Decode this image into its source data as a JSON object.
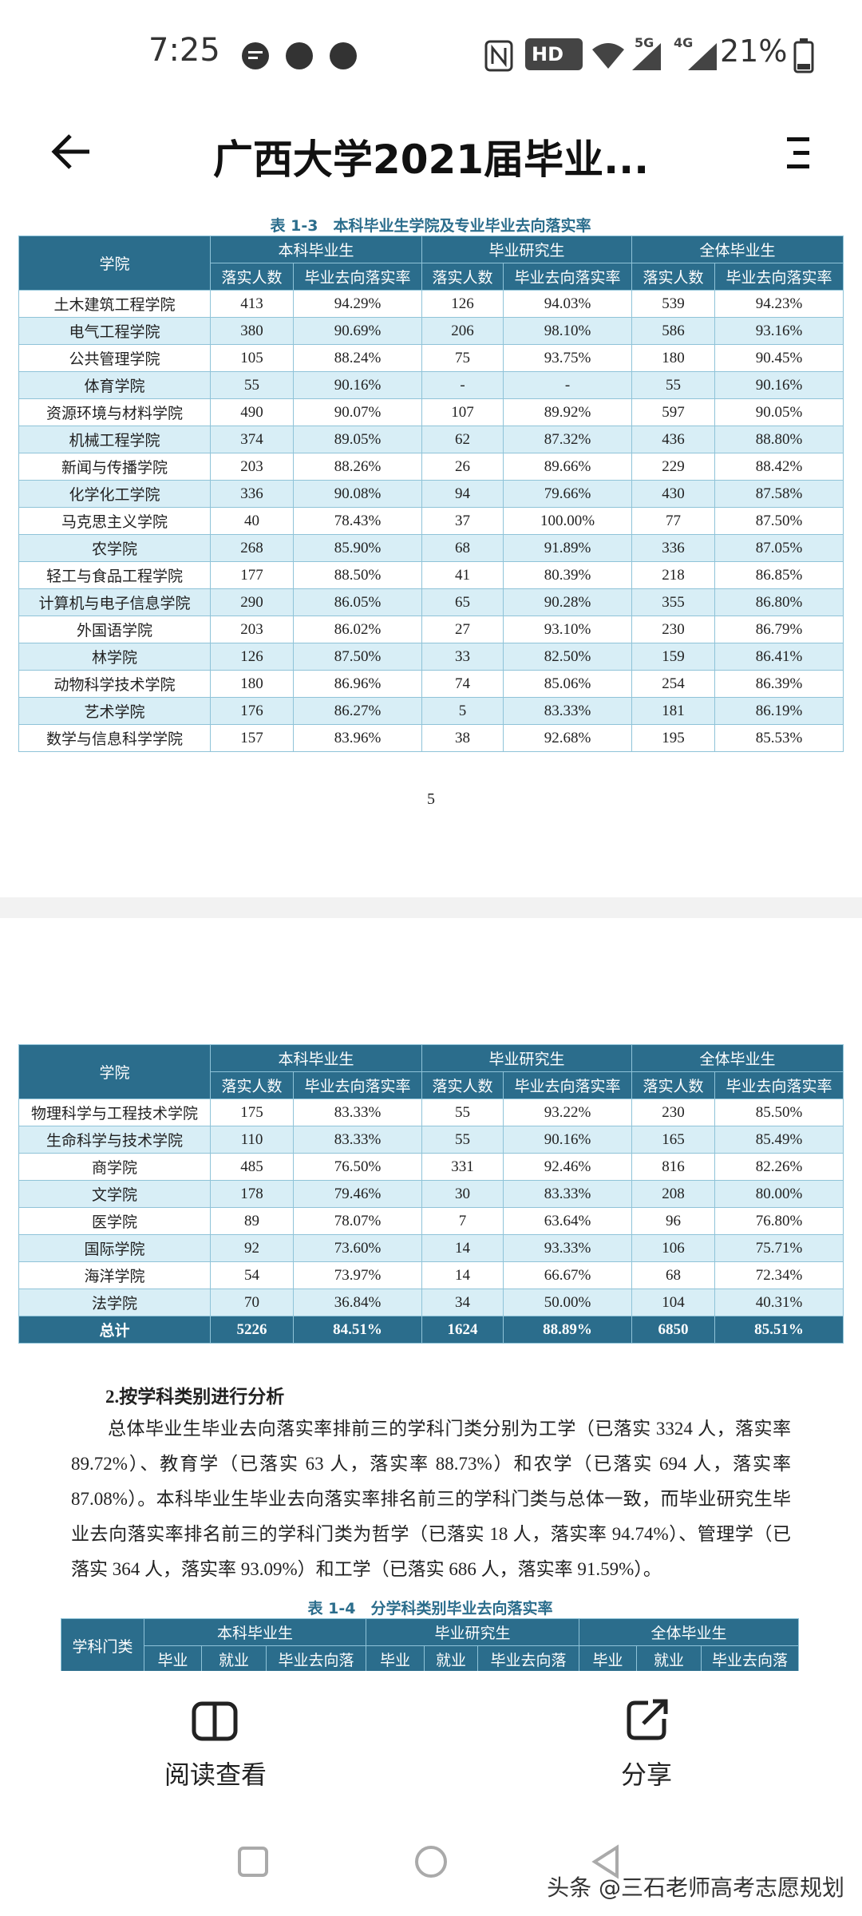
{
  "status_bar": {
    "time": "7:25",
    "hd": "HD",
    "net1": "5G",
    "net2": "4G",
    "battery": "21%"
  },
  "header": {
    "title": "广西大学2021届毕业..."
  },
  "table1": {
    "caption": "表 1-3　本科毕业生学院及专业毕业去向落实率",
    "header": [
      "学院"
    ],
    "groups": [
      "本科毕业生",
      "毕业研究生",
      "全体毕业生"
    ],
    "subheaders": [
      "落实人数",
      "毕业去向落实率",
      "落实人数",
      "毕业去向落实率",
      "落实人数",
      "毕业去向落实率"
    ],
    "rows": [
      [
        "土木建筑工程学院",
        "413",
        "94.29%",
        "126",
        "94.03%",
        "539",
        "94.23%"
      ],
      [
        "电气工程学院",
        "380",
        "90.69%",
        "206",
        "98.10%",
        "586",
        "93.16%"
      ],
      [
        "公共管理学院",
        "105",
        "88.24%",
        "75",
        "93.75%",
        "180",
        "90.45%"
      ],
      [
        "体育学院",
        "55",
        "90.16%",
        "-",
        "-",
        "55",
        "90.16%"
      ],
      [
        "资源环境与材料学院",
        "490",
        "90.07%",
        "107",
        "89.92%",
        "597",
        "90.05%"
      ],
      [
        "机械工程学院",
        "374",
        "89.05%",
        "62",
        "87.32%",
        "436",
        "88.80%"
      ],
      [
        "新闻与传播学院",
        "203",
        "88.26%",
        "26",
        "89.66%",
        "229",
        "88.42%"
      ],
      [
        "化学化工学院",
        "336",
        "90.08%",
        "94",
        "79.66%",
        "430",
        "87.58%"
      ],
      [
        "马克思主义学院",
        "40",
        "78.43%",
        "37",
        "100.00%",
        "77",
        "87.50%"
      ],
      [
        "农学院",
        "268",
        "85.90%",
        "68",
        "91.89%",
        "336",
        "87.05%"
      ],
      [
        "轻工与食品工程学院",
        "177",
        "88.50%",
        "41",
        "80.39%",
        "218",
        "86.85%"
      ],
      [
        "计算机与电子信息学院",
        "290",
        "86.05%",
        "65",
        "90.28%",
        "355",
        "86.80%"
      ],
      [
        "外国语学院",
        "203",
        "86.02%",
        "27",
        "93.10%",
        "230",
        "86.79%"
      ],
      [
        "林学院",
        "126",
        "87.50%",
        "33",
        "82.50%",
        "159",
        "86.41%"
      ],
      [
        "动物科学技术学院",
        "180",
        "86.96%",
        "74",
        "85.06%",
        "254",
        "86.39%"
      ],
      [
        "艺术学院",
        "176",
        "86.27%",
        "5",
        "83.33%",
        "181",
        "86.19%"
      ],
      [
        "数学与信息科学学院",
        "157",
        "83.96%",
        "38",
        "92.68%",
        "195",
        "85.53%"
      ]
    ]
  },
  "page_number": "5",
  "table2": {
    "header": [
      "学院"
    ],
    "groups": [
      "本科毕业生",
      "毕业研究生",
      "全体毕业生"
    ],
    "subheaders": [
      "落实人数",
      "毕业去向落实率",
      "落实人数",
      "毕业去向落实率",
      "落实人数",
      "毕业去向落实率"
    ],
    "rows": [
      [
        "物理科学与工程技术学院",
        "175",
        "83.33%",
        "55",
        "93.22%",
        "230",
        "85.50%"
      ],
      [
        "生命科学与技术学院",
        "110",
        "83.33%",
        "55",
        "90.16%",
        "165",
        "85.49%"
      ],
      [
        "商学院",
        "485",
        "76.50%",
        "331",
        "92.46%",
        "816",
        "82.26%"
      ],
      [
        "文学院",
        "178",
        "79.46%",
        "30",
        "83.33%",
        "208",
        "80.00%"
      ],
      [
        "医学院",
        "89",
        "78.07%",
        "7",
        "63.64%",
        "96",
        "76.80%"
      ],
      [
        "国际学院",
        "92",
        "73.60%",
        "14",
        "93.33%",
        "106",
        "75.71%"
      ],
      [
        "海洋学院",
        "54",
        "73.97%",
        "14",
        "66.67%",
        "68",
        "72.34%"
      ],
      [
        "法学院",
        "70",
        "36.84%",
        "34",
        "50.00%",
        "104",
        "40.31%"
      ]
    ],
    "total": [
      "总计",
      "5226",
      "84.51%",
      "1624",
      "88.89%",
      "6850",
      "85.51%"
    ]
  },
  "section": {
    "heading": "2.按学科类别进行分析",
    "lines": [
      "总体毕业生毕业去向落实率排前三的学科门类分别为工学（已落实 3324 人，落实率",
      "89.72%）、教育学（已落实 63 人，落实率 88.73%）和农学（已落实 694 人，落实率",
      "87.08%）。本科毕业生毕业去向落实率排名前三的学科门类与总体一致，而毕业研究生毕",
      "业去向落实率排名前三的学科门类为哲学（已落实 18 人，落实率 94.74%）、管理学（已",
      "落实 364 人，落实率 93.09%）和工学（已落实 686 人，落实率 91.59%）。"
    ]
  },
  "table3": {
    "caption": "表 1-4　分学科类别毕业去向落实率",
    "header": [
      "学科门类"
    ],
    "groups": [
      "本科毕业生",
      "毕业研究生",
      "全体毕业生"
    ],
    "subheaders": [
      "毕业",
      "就业",
      "毕业去向落",
      "毕业",
      "就业",
      "毕业去向落",
      "毕业",
      "就业",
      "毕业去向落"
    ],
    "rows": []
  },
  "bottom_bar": {
    "read": "阅读查看",
    "share": "分享"
  },
  "watermark": "头条 @三石老师高考志愿规划"
}
